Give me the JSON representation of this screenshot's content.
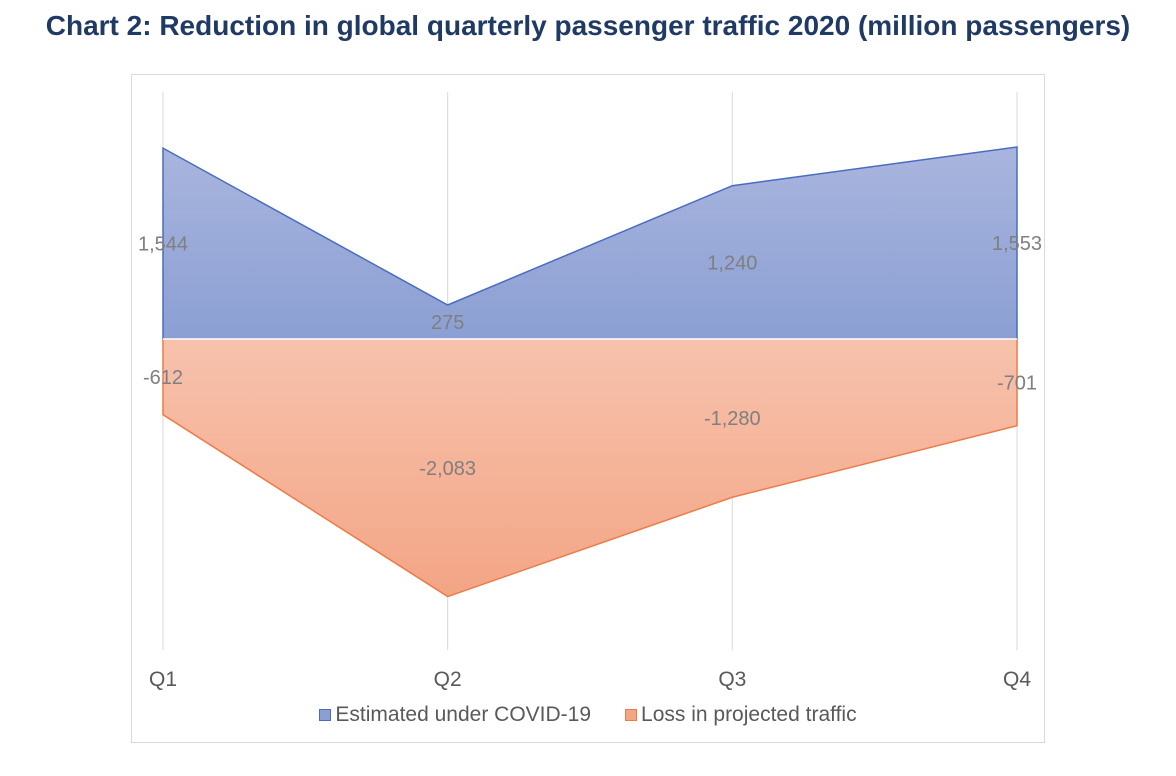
{
  "title": "Chart 2: Reduction in global quarterly passenger traffic 2020 (million passengers)",
  "colors": {
    "title": "#1f3a64",
    "series_blue_top": "#a9b5de",
    "series_blue_bottom": "#8b9fd3",
    "series_blue_line": "#4a6cc0",
    "series_orange_top": "#f7c2ad",
    "series_orange_bottom": "#f3a585",
    "series_orange_line": "#ee7b45",
    "gridline": "#d9d9d9",
    "label_text": "#7f7f7f",
    "tick_text": "#595959"
  },
  "chart_data": {
    "type": "area",
    "categories": [
      "Q1",
      "Q2",
      "Q3",
      "Q4"
    ],
    "series": [
      {
        "name": "Estimated under COVID-19",
        "values": [
          1544,
          275,
          1240,
          1553
        ],
        "labels": [
          "1,544",
          "275",
          "1,240",
          "1,553"
        ],
        "color": "#8b9fd3"
      },
      {
        "name": "Loss in projected traffic",
        "values": [
          -612,
          -2083,
          -1280,
          -701
        ],
        "labels": [
          "-612",
          "-2,083",
          "-1,280",
          "-701"
        ],
        "color": "#f3a585"
      }
    ],
    "ylim": [
      -2500,
      2000
    ],
    "grid": "vertical",
    "legend_position": "bottom"
  }
}
